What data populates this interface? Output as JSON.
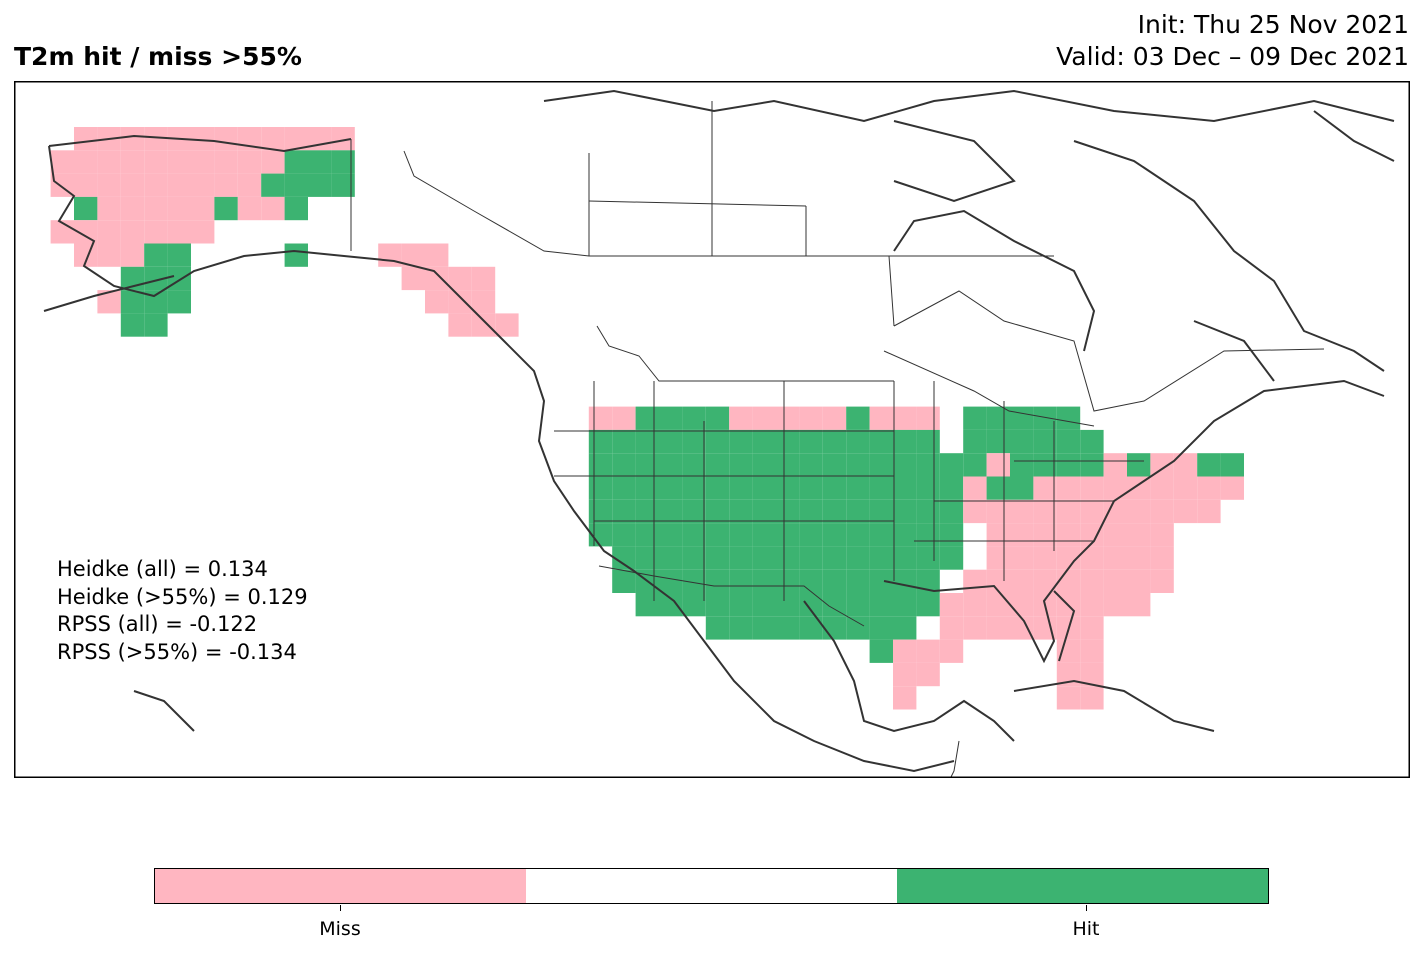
{
  "header": {
    "title": "T2m hit / miss  >55%",
    "init": "Init: Thu 25 Nov 2021",
    "valid": "Valid: 03 Dec – 09 Dec 2021"
  },
  "scores": [
    "Heidke (all) = 0.134",
    "Heidke (>55%) = 0.129",
    "RPSS (all) = -0.122",
    "RPSS (>55%) = -0.134"
  ],
  "colors": {
    "miss": "#ffb6c1",
    "none": "#ffffff",
    "hit": "#3cb371",
    "coast": "#333333",
    "border": "#333333"
  },
  "legend": {
    "miss_label": "Miss",
    "hit_label": "Hit"
  }
}
